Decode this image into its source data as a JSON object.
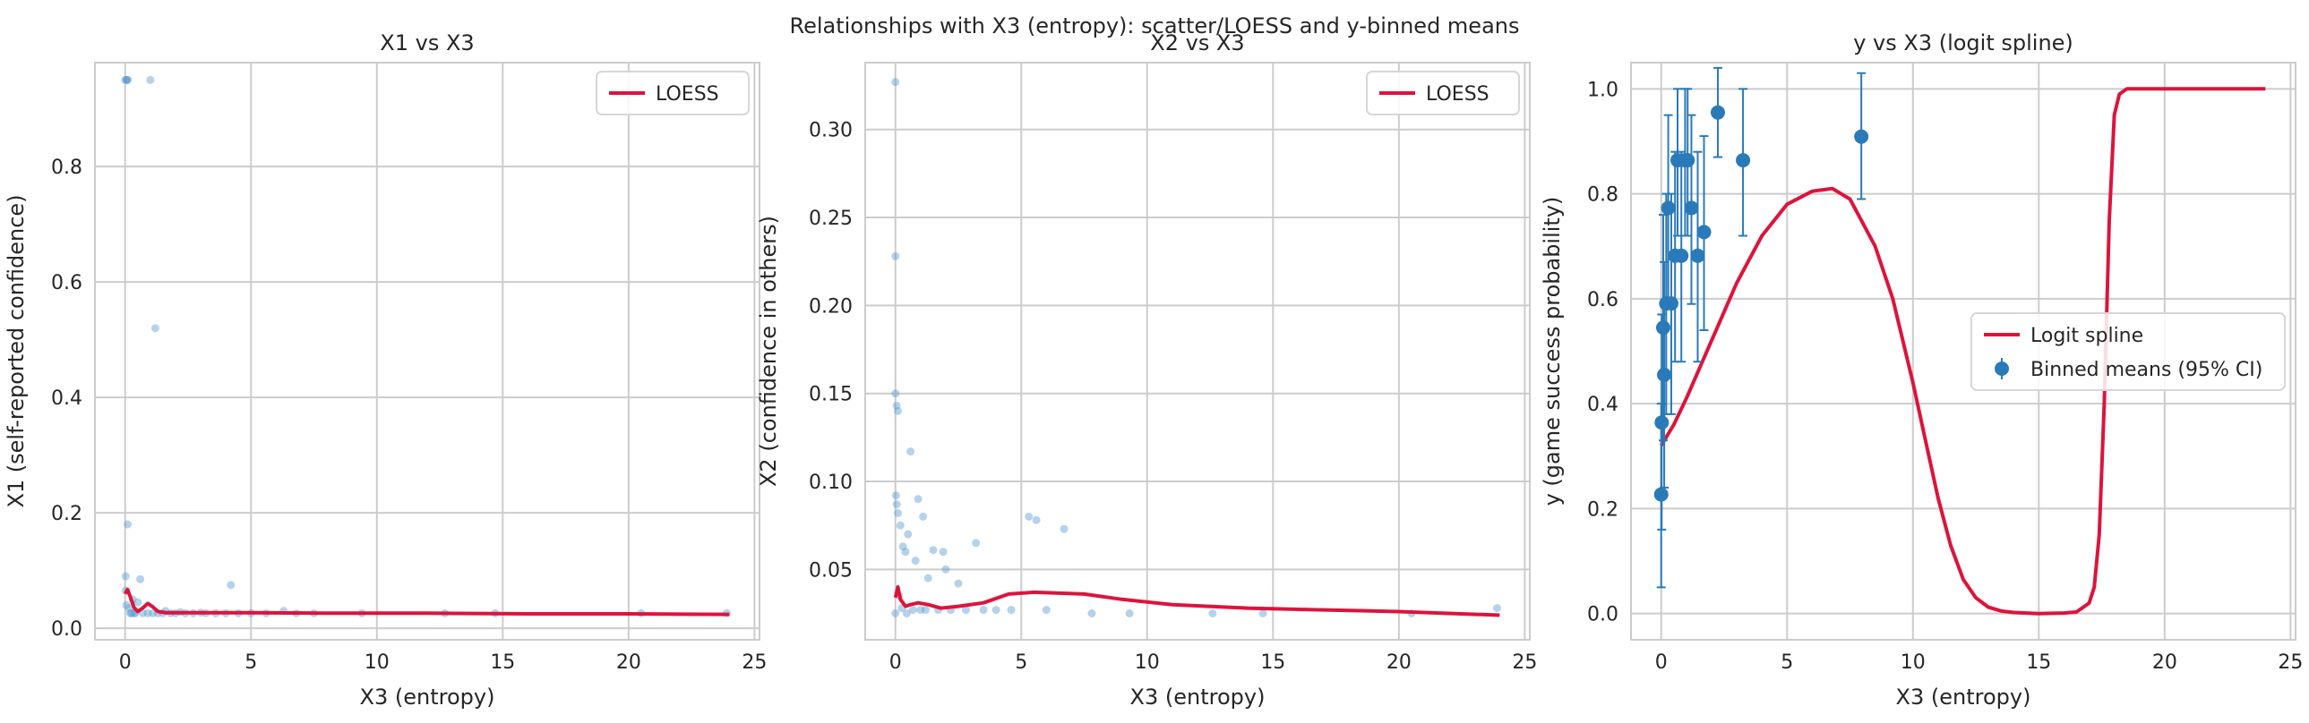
{
  "suptitle": "Relationships with X3 (entropy): scatter/LOESS and y-binned means",
  "colors": {
    "scatter": "#5a9bd0",
    "curve": "#dc143c",
    "points": "#2a7ab9",
    "grid": "#cccccc",
    "frame": "#cccccc"
  },
  "chart_data": [
    {
      "type": "scatter",
      "title": "X1 vs X3",
      "xlabel": "X3 (entropy)",
      "ylabel": "X1 (self-reported confidence)",
      "xlim": [
        -1.2,
        25.2
      ],
      "ylim": [
        -0.02,
        0.98
      ],
      "xticks": [
        0,
        5,
        10,
        15,
        20,
        25
      ],
      "yticks": [
        0.0,
        0.2,
        0.4,
        0.6,
        0.8
      ],
      "ytick_labels": [
        "0.0",
        "0.2",
        "0.4",
        "0.6",
        "0.8"
      ],
      "grid": true,
      "legend": {
        "position": "top-right",
        "entries": [
          "LOESS"
        ]
      },
      "series": [
        {
          "type": "scatter",
          "x": [
            0.0,
            0.05,
            0.1,
            0.08,
            1.0,
            1.2,
            0.1,
            0.02,
            0.6,
            0.02,
            4.2,
            0.3,
            0.5,
            0.05,
            0.15,
            1.6,
            2.2,
            3.0,
            0.4,
            0.7,
            0.9,
            1.1,
            1.3,
            1.5,
            1.8,
            2.0,
            2.4,
            2.7,
            3.2,
            3.6,
            4.0,
            4.5,
            5.0,
            5.6,
            6.3,
            6.8,
            7.5,
            9.4,
            12.7,
            14.7,
            20.5,
            23.9,
            0.2,
            0.25,
            0.35
          ],
          "y": [
            0.95,
            0.95,
            0.95,
            0.95,
            0.95,
            0.52,
            0.18,
            0.09,
            0.085,
            0.065,
            0.075,
            0.05,
            0.045,
            0.04,
            0.035,
            0.03,
            0.028,
            0.027,
            0.026,
            0.026,
            0.026,
            0.026,
            0.026,
            0.026,
            0.026,
            0.026,
            0.026,
            0.026,
            0.026,
            0.026,
            0.026,
            0.026,
            0.026,
            0.026,
            0.03,
            0.026,
            0.026,
            0.026,
            0.026,
            0.026,
            0.026,
            0.026,
            0.026,
            0.026,
            0.026
          ]
        },
        {
          "type": "line",
          "name": "LOESS",
          "x": [
            0.0,
            0.1,
            0.2,
            0.35,
            0.5,
            0.7,
            0.9,
            1.1,
            1.3,
            1.6,
            2.0,
            3.0,
            5.0,
            8.0,
            12.0,
            16.0,
            20.0,
            24.0
          ],
          "y": [
            0.06,
            0.067,
            0.055,
            0.036,
            0.029,
            0.035,
            0.043,
            0.037,
            0.029,
            0.027,
            0.027,
            0.027,
            0.027,
            0.026,
            0.026,
            0.025,
            0.025,
            0.024
          ]
        }
      ]
    },
    {
      "type": "scatter",
      "title": "X2 vs X3",
      "xlabel": "X3 (entropy)",
      "ylabel": "X2 (confidence in others)",
      "xlim": [
        -1.2,
        25.2
      ],
      "ylim": [
        0.01,
        0.338
      ],
      "xticks": [
        0,
        5,
        10,
        15,
        20,
        25
      ],
      "yticks": [
        0.05,
        0.1,
        0.15,
        0.2,
        0.25,
        0.3
      ],
      "ytick_labels": [
        "0.05",
        "0.10",
        "0.15",
        "0.20",
        "0.25",
        "0.30"
      ],
      "grid": true,
      "legend": {
        "position": "top-right",
        "entries": [
          "LOESS"
        ]
      },
      "series": [
        {
          "type": "scatter",
          "x": [
            0.0,
            0.0,
            0.0,
            0.05,
            0.1,
            0.02,
            0.05,
            0.1,
            0.2,
            0.5,
            0.9,
            0.6,
            1.1,
            0.3,
            0.4,
            0.8,
            1.5,
            1.3,
            2.0,
            2.5,
            1.9,
            3.2,
            5.3,
            5.6,
            6.7,
            0.15,
            0.25,
            0.7,
            1.0,
            1.2,
            1.7,
            2.2,
            2.8,
            3.5,
            4.0,
            4.6,
            6.0,
            7.8,
            9.3,
            12.6,
            14.6,
            20.5,
            23.9,
            0.0,
            0.45
          ],
          "y": [
            0.327,
            0.228,
            0.15,
            0.143,
            0.14,
            0.092,
            0.087,
            0.082,
            0.075,
            0.07,
            0.09,
            0.117,
            0.08,
            0.063,
            0.06,
            0.055,
            0.061,
            0.045,
            0.05,
            0.042,
            0.06,
            0.065,
            0.08,
            0.078,
            0.073,
            0.035,
            0.028,
            0.027,
            0.027,
            0.027,
            0.027,
            0.027,
            0.027,
            0.027,
            0.027,
            0.027,
            0.027,
            0.025,
            0.025,
            0.025,
            0.025,
            0.025,
            0.028,
            0.025,
            0.025
          ]
        },
        {
          "type": "line",
          "name": "LOESS",
          "x": [
            0.0,
            0.1,
            0.2,
            0.4,
            0.6,
            0.9,
            1.3,
            1.8,
            2.5,
            3.5,
            4.5,
            5.5,
            6.5,
            7.5,
            9.0,
            11.0,
            14.0,
            17.0,
            20.0,
            24.0
          ],
          "y": [
            0.034,
            0.04,
            0.033,
            0.029,
            0.03,
            0.031,
            0.03,
            0.028,
            0.029,
            0.031,
            0.036,
            0.037,
            0.0365,
            0.036,
            0.033,
            0.03,
            0.028,
            0.027,
            0.026,
            0.024
          ]
        }
      ]
    },
    {
      "type": "line",
      "title": "y vs X3 (logit spline)",
      "xlabel": "X3 (entropy)",
      "ylabel": "y (game success probability)",
      "xlim": [
        -1.2,
        25.2
      ],
      "ylim": [
        -0.05,
        1.05
      ],
      "xticks": [
        0,
        5,
        10,
        15,
        20,
        25
      ],
      "yticks": [
        0.0,
        0.2,
        0.4,
        0.6,
        0.8,
        1.0
      ],
      "ytick_labels": [
        "0.0",
        "0.2",
        "0.4",
        "0.6",
        "0.8",
        "1.0"
      ],
      "grid": true,
      "legend": {
        "position": "center-right",
        "entries": [
          "Logit spline",
          "Binned means (95% CI)"
        ]
      },
      "series": [
        {
          "type": "line",
          "name": "Logit spline",
          "x": [
            0.0,
            0.5,
            1.0,
            2.0,
            3.0,
            4.0,
            5.0,
            6.0,
            6.8,
            7.5,
            8.5,
            9.2,
            10.0,
            10.5,
            11.0,
            11.5,
            12.0,
            12.5,
            13.0,
            13.5,
            14.0,
            15.0,
            16.0,
            16.5,
            17.0,
            17.2,
            17.4,
            17.6,
            17.8,
            18.0,
            18.2,
            18.5,
            19.0,
            20.0,
            22.0,
            24.0
          ],
          "y": [
            0.32,
            0.36,
            0.41,
            0.52,
            0.63,
            0.72,
            0.78,
            0.805,
            0.81,
            0.79,
            0.7,
            0.6,
            0.44,
            0.33,
            0.22,
            0.13,
            0.065,
            0.03,
            0.012,
            0.005,
            0.002,
            0.0,
            0.001,
            0.003,
            0.02,
            0.05,
            0.15,
            0.4,
            0.75,
            0.95,
            0.99,
            1.0,
            1.0,
            1.0,
            1.0,
            1.0
          ]
        },
        {
          "type": "errorbar",
          "name": "Binned means (95% CI)",
          "x": [
            0.0,
            0.02,
            0.08,
            0.12,
            0.2,
            0.28,
            0.4,
            0.55,
            0.65,
            0.8,
            0.95,
            1.05,
            1.2,
            1.45,
            1.7,
            2.25,
            3.25,
            7.95
          ],
          "y": [
            0.227,
            0.364,
            0.545,
            0.455,
            0.591,
            0.773,
            0.591,
            0.682,
            0.864,
            0.682,
            0.864,
            0.864,
            0.773,
            0.682,
            0.727,
            0.955,
            0.864,
            0.909
          ],
          "ci_low": [
            0.05,
            0.16,
            0.33,
            0.24,
            0.38,
            0.59,
            0.38,
            0.48,
            0.72,
            0.48,
            0.72,
            0.72,
            0.59,
            0.48,
            0.54,
            0.87,
            0.72,
            0.79
          ],
          "ci_high": [
            0.4,
            0.57,
            0.76,
            0.67,
            0.8,
            0.95,
            0.8,
            0.88,
            1.0,
            0.88,
            1.0,
            1.0,
            0.95,
            0.88,
            0.91,
            1.04,
            1.0,
            1.03
          ]
        }
      ]
    }
  ]
}
